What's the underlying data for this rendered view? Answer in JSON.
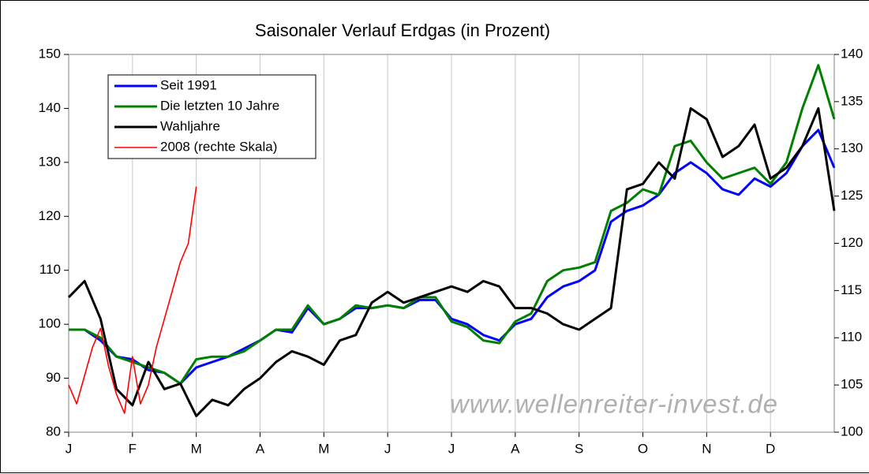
{
  "chart_data": {
    "type": "line",
    "title": "Saisonaler Verlauf Erdgas (in Prozent)",
    "categories": [
      "J",
      "F",
      "M",
      "A",
      "M",
      "J",
      "J",
      "A",
      "S",
      "O",
      "N",
      "D"
    ],
    "xlim": [
      0,
      12
    ],
    "x": [
      0,
      0.25,
      0.5,
      0.75,
      1,
      1.25,
      1.5,
      1.75,
      2,
      2.25,
      2.5,
      2.75,
      3,
      3.25,
      3.5,
      3.75,
      4,
      4.25,
      4.5,
      4.75,
      5,
      5.25,
      5.5,
      5.75,
      6,
      6.25,
      6.5,
      6.75,
      7,
      7.25,
      7.5,
      7.75,
      8,
      8.25,
      8.5,
      8.75,
      9,
      9.25,
      9.5,
      9.75,
      10,
      10.25,
      10.5,
      10.75,
      11,
      11.25,
      11.5,
      11.75,
      12
    ],
    "ylim": [
      80,
      150
    ],
    "yticks": [
      80,
      90,
      100,
      110,
      120,
      130,
      140,
      150
    ],
    "y2lim": [
      100,
      140
    ],
    "y2ticks": [
      100,
      105,
      110,
      115,
      120,
      125,
      130,
      135,
      140
    ],
    "grid": "x",
    "legend": "upper left",
    "watermark": "www.wellenreiter-invest.de",
    "series": [
      {
        "name": "Seit 1991",
        "color": "#0000ff",
        "values": [
          99,
          99,
          97,
          94,
          93.5,
          91.5,
          91,
          89,
          92,
          93,
          94,
          95.5,
          97,
          99,
          98.5,
          103,
          100,
          101,
          103,
          103,
          103.5,
          103,
          104.5,
          104.5,
          101,
          100,
          98,
          97,
          100,
          101,
          105,
          107,
          108,
          110,
          119,
          121,
          122,
          124,
          128,
          130,
          128,
          125,
          124,
          127,
          125.5,
          128,
          133,
          136,
          129
        ]
      },
      {
        "name": "Die letzten 10 Jahre",
        "color": "#008000",
        "values": [
          99,
          99,
          97.5,
          94,
          93,
          92,
          91,
          89,
          93.5,
          94,
          94,
          95,
          97,
          99,
          99,
          103.5,
          100,
          101,
          103.5,
          103,
          103.5,
          103,
          105,
          105,
          100.5,
          99.5,
          97,
          96.5,
          100.5,
          102,
          108,
          110,
          110.5,
          111.5,
          121,
          122.5,
          125,
          124,
          133,
          134,
          130,
          127,
          128,
          129,
          126,
          130,
          140,
          148,
          138
        ]
      },
      {
        "name": "Wahljahre",
        "color": "#000000",
        "values": [
          105,
          108,
          101,
          88,
          85,
          93,
          88,
          89,
          83,
          86,
          85,
          88,
          90,
          93,
          95,
          94,
          92.5,
          97,
          98,
          104,
          106,
          104,
          105,
          106,
          107,
          106,
          108,
          107,
          103,
          103,
          102,
          100,
          99,
          101,
          103,
          125,
          126,
          130,
          127,
          140,
          138,
          131,
          133,
          137,
          127,
          129,
          133,
          140,
          121
        ]
      },
      {
        "name": "2008 (rechte Skala)",
        "color": "#ff0000",
        "axis": "y2",
        "x": [
          0,
          0.125,
          0.25,
          0.375,
          0.5,
          0.625,
          0.75,
          0.875,
          1,
          1.125,
          1.25,
          1.375,
          1.5,
          1.625,
          1.75,
          1.875,
          2
        ],
        "values": [
          105,
          103,
          106,
          109,
          111,
          107,
          104,
          102,
          108,
          103,
          105,
          109,
          112,
          115,
          118,
          120,
          126
        ]
      }
    ]
  }
}
